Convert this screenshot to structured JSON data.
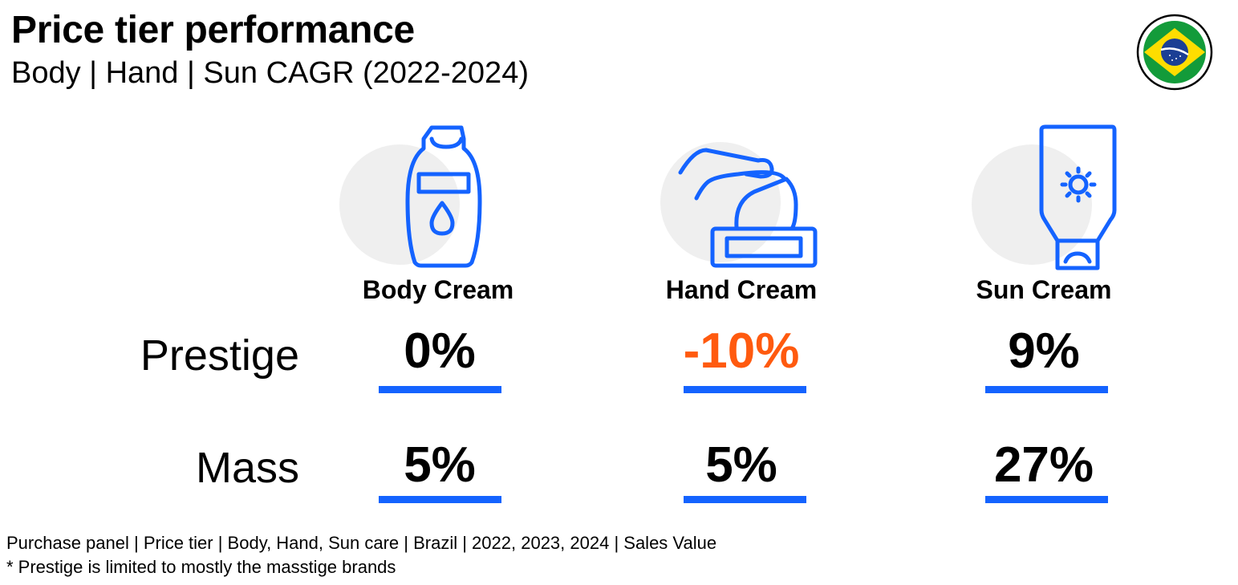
{
  "header": {
    "title": "Price tier performance",
    "subtitle": "Body | Hand | Sun CAGR (2022-2024)",
    "flag_icon": "brazil-flag-icon"
  },
  "colors": {
    "accent": "#1463ff",
    "negative": "#ff5a0f",
    "text": "#000000",
    "icon_bg": "#efefef"
  },
  "chart_data": {
    "type": "table",
    "title": "Price tier performance",
    "subtitle": "Body | Hand | Sun CAGR (2022-2024)",
    "columns": [
      {
        "label": "Body Cream",
        "icon": "body-lotion-bottle-icon"
      },
      {
        "label": "Hand Cream",
        "icon": "hand-cream-jar-icon"
      },
      {
        "label": "Sun Cream",
        "icon": "sunscreen-tube-icon"
      }
    ],
    "rows": [
      {
        "label": "Prestige",
        "values": [
          0,
          -10,
          9
        ],
        "display": [
          "0%",
          "-10%",
          "9%"
        ]
      },
      {
        "label": "Mass",
        "values": [
          5,
          5,
          27
        ],
        "display": [
          "5%",
          "5%",
          "27%"
        ]
      }
    ],
    "unit": "%"
  },
  "footer": {
    "source": "Purchase panel | Price tier | Body, Hand, Sun care | Brazil | 2022, 2023, 2024 | Sales Value",
    "note": "* Prestige is limited to mostly the masstige brands"
  }
}
